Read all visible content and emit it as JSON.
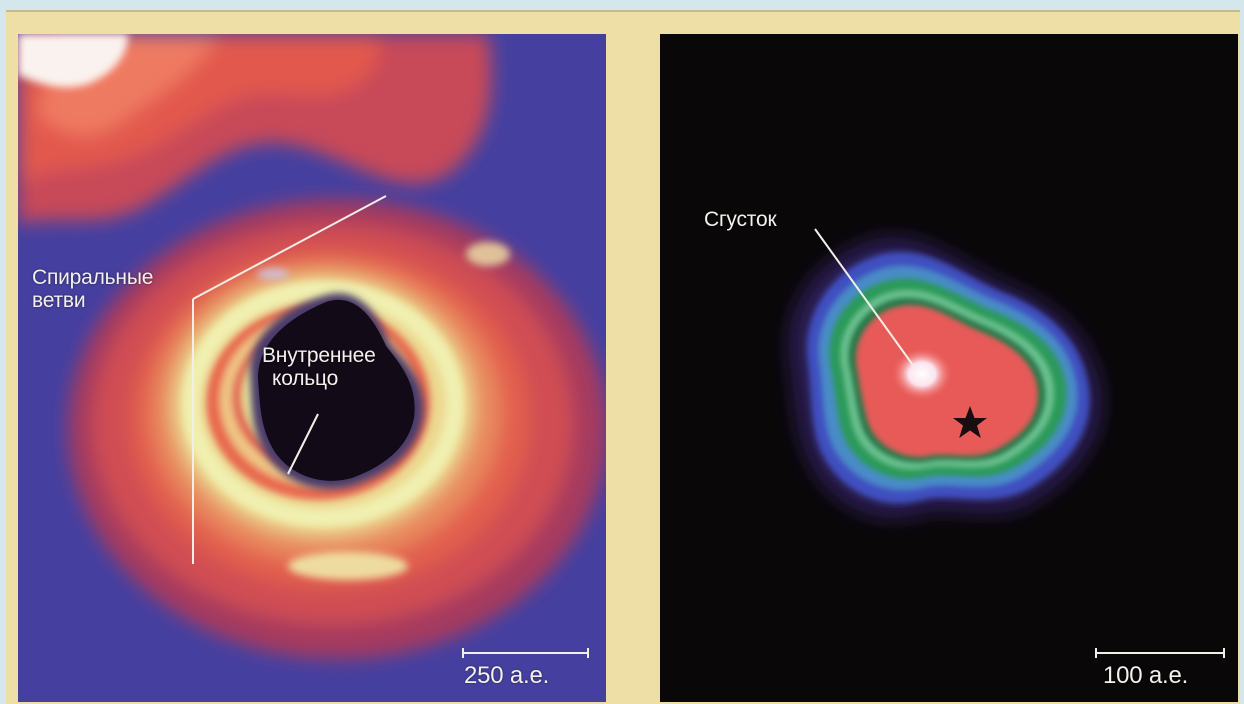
{
  "left_panel": {
    "labels": {
      "spiral_arms_line1": "Спиральные",
      "spiral_arms_line2": "ветви",
      "inner_ring_line1": "Внутреннее",
      "inner_ring_line2": "кольцо"
    },
    "scale_bar": "250 а.е."
  },
  "right_panel": {
    "labels": {
      "clump": "Сгусток"
    },
    "scale_bar": "100 а.е."
  },
  "colors": {
    "frame": "#eedfa6",
    "left_background": "#4540a0",
    "right_background": "#090707",
    "disk_red": "#e0584e",
    "ring_yellow": "#e8e89a",
    "green_contour": "#2fa36a",
    "blue_contour": "#3a55c8"
  }
}
